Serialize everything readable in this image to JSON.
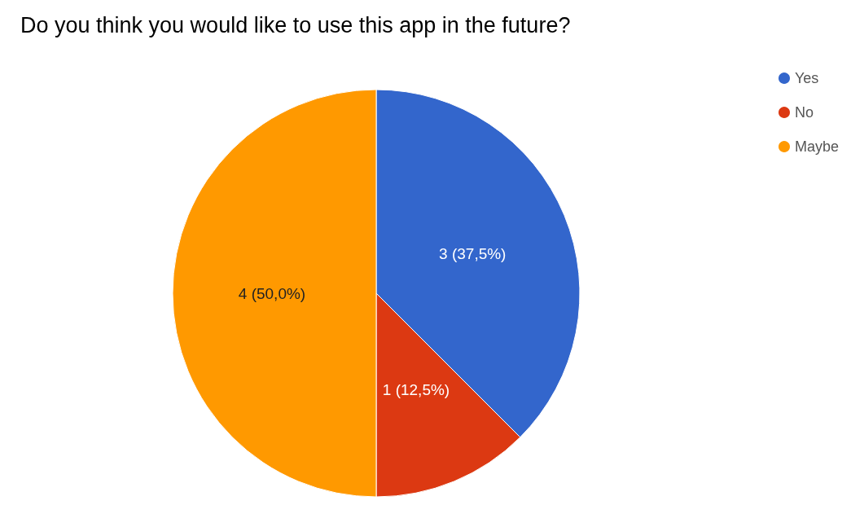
{
  "chart_data": {
    "type": "pie",
    "title": "Do you think you would like to use this app in the future?",
    "categories": [
      "Yes",
      "No",
      "Maybe"
    ],
    "values": [
      3,
      1,
      4
    ],
    "colors": [
      "#3366cc",
      "#dc3912",
      "#ff9900"
    ],
    "value_labels": [
      "3 (37,5%)",
      "1 (12,5%)",
      "4 (50,0%)"
    ],
    "legend": "top right"
  }
}
